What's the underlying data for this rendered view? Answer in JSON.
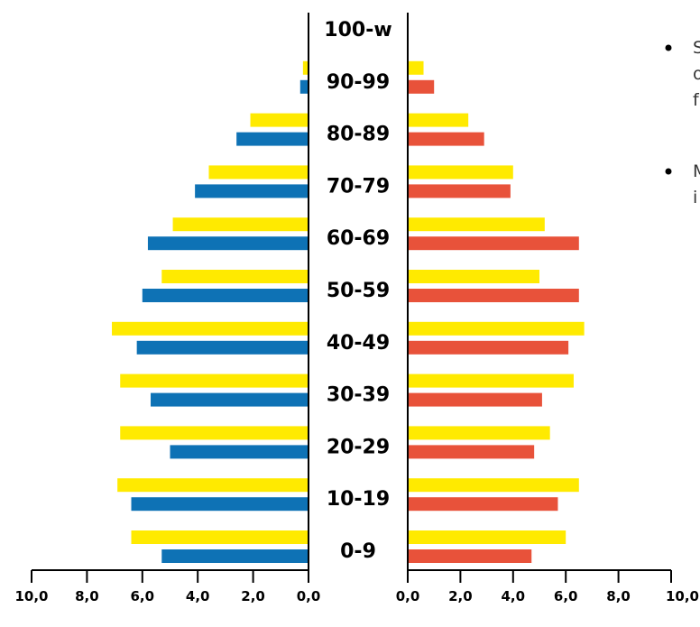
{
  "chart_data": {
    "type": "bar",
    "orientation": "horizontal",
    "layout": "population-pyramid",
    "categories": [
      "0-9",
      "10-19",
      "20-29",
      "30-39",
      "40-49",
      "50-59",
      "60-69",
      "70-79",
      "80-89",
      "90-99",
      "100-w"
    ],
    "left_panel": {
      "xlim": [
        0,
        10
      ],
      "reversed": true,
      "ticks": [
        "10,0",
        "8,0",
        "6,0",
        "4,0",
        "2,0",
        "0,0"
      ],
      "series": [
        {
          "color": "#FFEA00",
          "values": [
            6.4,
            6.9,
            6.8,
            6.8,
            7.1,
            5.3,
            4.9,
            3.6,
            2.1,
            0.2,
            0
          ]
        },
        {
          "color": "#0E72B5",
          "values": [
            5.3,
            6.4,
            5.0,
            5.7,
            6.2,
            6.0,
            5.8,
            4.1,
            2.6,
            0.3,
            0
          ]
        }
      ]
    },
    "right_panel": {
      "xlim": [
        0,
        10
      ],
      "ticks": [
        "0,0",
        "2,0",
        "4,0",
        "6,0",
        "8,0",
        "10,0"
      ],
      "series": [
        {
          "color": "#FFEA00",
          "values": [
            6.0,
            6.5,
            5.4,
            6.3,
            6.7,
            5.0,
            5.2,
            4.0,
            2.3,
            0.6,
            0
          ]
        },
        {
          "color": "#E8523A",
          "values": [
            4.7,
            5.7,
            4.8,
            5.1,
            6.1,
            6.5,
            6.5,
            3.9,
            2.9,
            1.0,
            0
          ]
        }
      ]
    }
  },
  "side_text": {
    "bullets": [
      {
        "lines": [
          "S",
          "o",
          "f"
        ]
      },
      {
        "lines": [
          "M",
          "i"
        ]
      }
    ]
  }
}
